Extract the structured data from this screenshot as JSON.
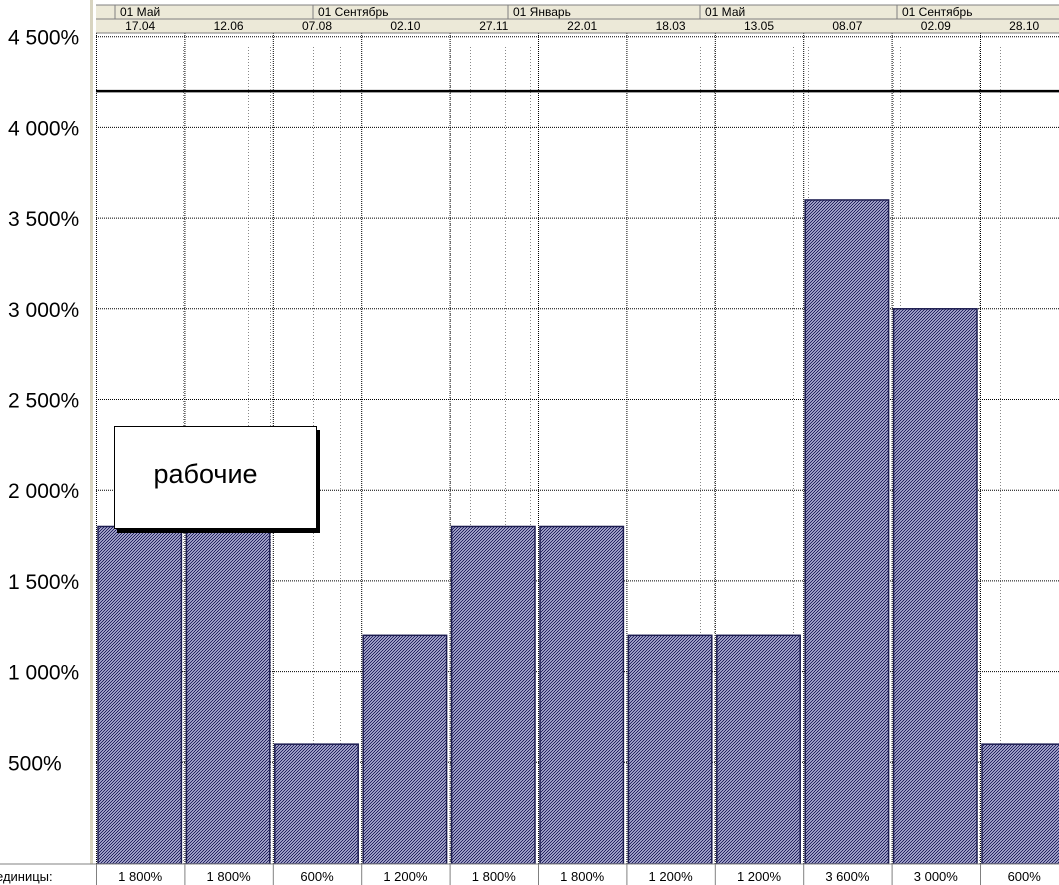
{
  "chart_data": {
    "type": "bar",
    "timescale_top": [
      "01 Май",
      "01 Сентябрь",
      "01 Январь",
      "01 Май",
      "01 Сентябрь"
    ],
    "categories": [
      "17.04",
      "12.06",
      "07.08",
      "02.10",
      "27.11",
      "22.01",
      "18.03",
      "13.05",
      "08.07",
      "02.09",
      "28.10"
    ],
    "values": [
      1800,
      1800,
      600,
      1200,
      1800,
      1800,
      1200,
      1200,
      3600,
      3000,
      600
    ],
    "bar_labels": [
      "1 800%",
      "1 800%",
      "600%",
      "1 200%",
      "1 800%",
      "1 800%",
      "1 200%",
      "1 200%",
      "3 600%",
      "3 000%",
      "600%"
    ],
    "y_ticks": [
      "500%",
      "1 000%",
      "1 500%",
      "2 000%",
      "2 500%",
      "3 000%",
      "3 500%",
      "4 000%",
      "4 500%"
    ],
    "ylim": [
      0,
      4600
    ],
    "max_units_line": 4200,
    "row_label": "единицы:",
    "legend": "рабочие",
    "bar_color": "#3a3a78",
    "grid": true
  }
}
